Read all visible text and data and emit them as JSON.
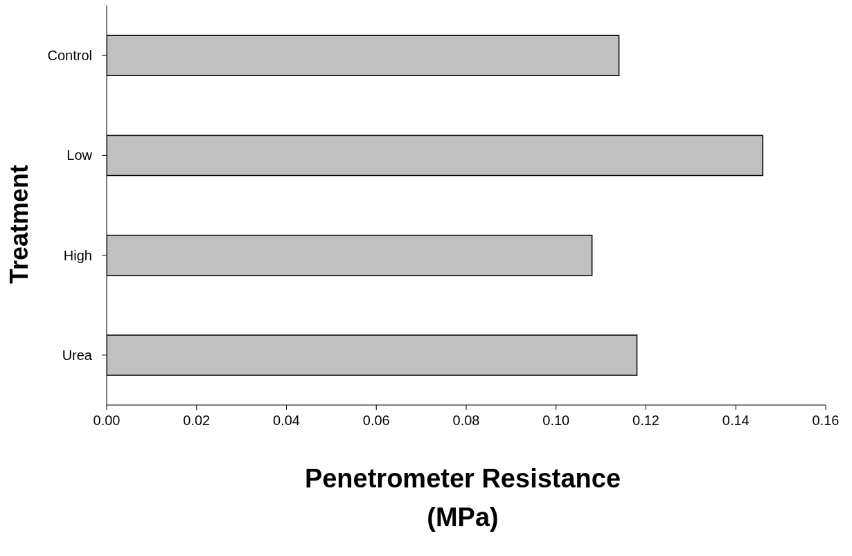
{
  "chart_data": {
    "type": "bar",
    "orientation": "horizontal",
    "xlabel": "Penetrometer Resistance (MPa)",
    "ylabel": "Treatment",
    "categories": [
      "Control",
      "Low",
      "High",
      "Urea"
    ],
    "values": [
      0.114,
      0.146,
      0.108,
      0.118
    ],
    "color": "#c0c0c0",
    "xlim": [
      0,
      0.16
    ],
    "xticks": [
      {
        "value": 0,
        "label": "0.00"
      },
      {
        "value": 0.02,
        "label": "0.02"
      },
      {
        "value": 0.04,
        "label": "0.04"
      },
      {
        "value": 0.06,
        "label": "0.06"
      },
      {
        "value": 0.08,
        "label": "0.08"
      },
      {
        "value": 0.1,
        "label": "0.10"
      },
      {
        "value": 0.12,
        "label": "0.12"
      },
      {
        "value": 0.14,
        "label": "0.14"
      },
      {
        "value": 0.16,
        "label": "0.16"
      }
    ],
    "grid": false,
    "legend": false
  }
}
